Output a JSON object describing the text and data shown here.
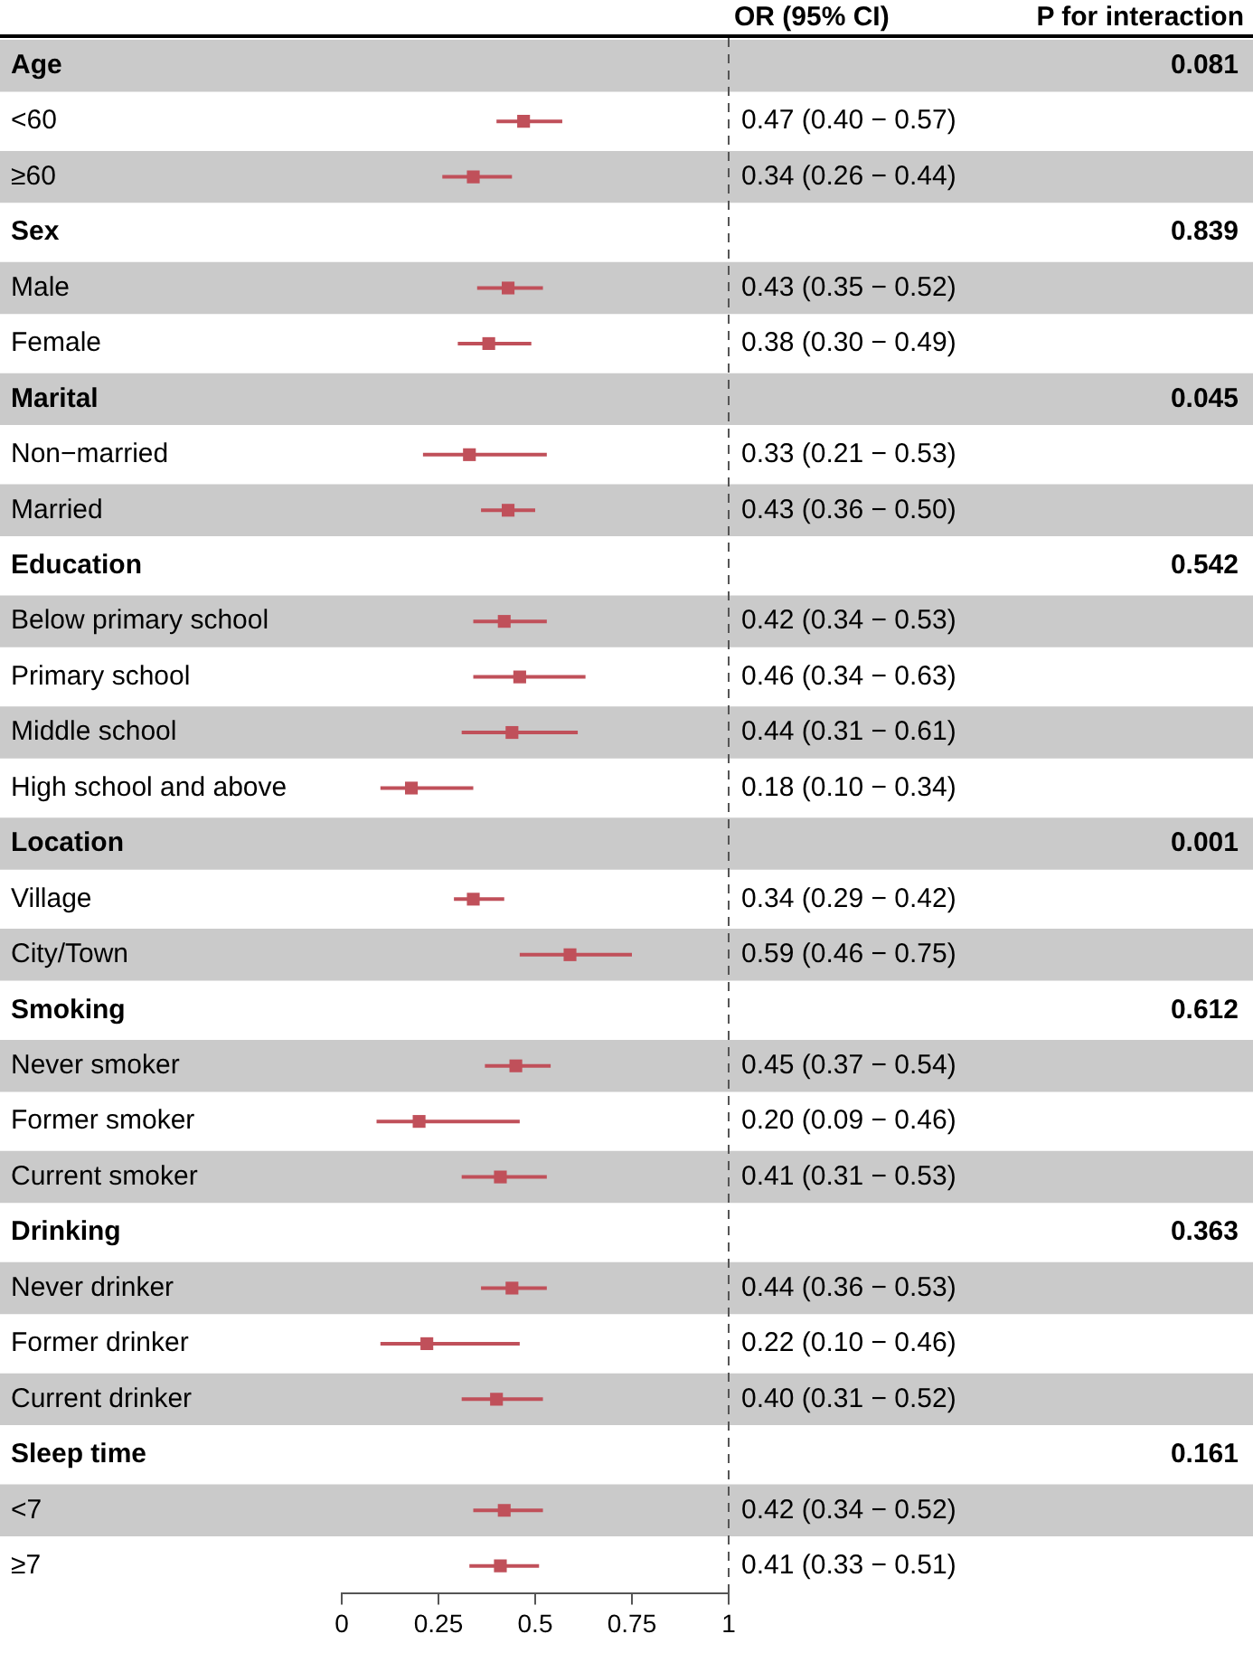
{
  "chart_data": {
    "type": "scatter",
    "orientation": "horizontal",
    "categories": [
      "Age",
      "<60",
      "≥60",
      "Sex",
      "Male",
      "Female",
      "Marital",
      "Non−married",
      "Married",
      "Education",
      "Below primary school",
      "Primary school",
      "Middle school",
      "High school and above",
      "Location",
      "Village",
      "City/Town",
      "Smoking",
      "Never smoker",
      "Former smoker",
      "Current smoker",
      "Drinking",
      "Never drinker",
      "Former drinker",
      "Current drinker",
      "Sleep time",
      "<7",
      "≥7"
    ],
    "series": [
      {
        "color": "#c0505a",
        "values": [
          null,
          0.47,
          0.34,
          null,
          0.43,
          0.38,
          null,
          0.33,
          0.43,
          null,
          0.42,
          0.46,
          0.44,
          0.18,
          null,
          0.34,
          0.59,
          null,
          0.45,
          0.2,
          0.41,
          null,
          0.44,
          0.22,
          0.4,
          null,
          0.42,
          0.41
        ],
        "errors": [
          null,
          [
            0.4,
            0.57
          ],
          [
            0.26,
            0.44
          ],
          null,
          [
            0.35,
            0.52
          ],
          [
            0.3,
            0.49
          ],
          null,
          [
            0.21,
            0.53
          ],
          [
            0.36,
            0.5
          ],
          null,
          [
            0.34,
            0.53
          ],
          [
            0.34,
            0.63
          ],
          [
            0.31,
            0.61
          ],
          [
            0.1,
            0.34
          ],
          null,
          [
            0.29,
            0.42
          ],
          [
            0.46,
            0.75
          ],
          null,
          [
            0.37,
            0.54
          ],
          [
            0.09,
            0.46
          ],
          [
            0.31,
            0.53
          ],
          null,
          [
            0.36,
            0.53
          ],
          [
            0.1,
            0.46
          ],
          [
            0.31,
            0.52
          ],
          null,
          [
            0.34,
            0.52
          ],
          [
            0.33,
            0.51
          ]
        ],
        "value_labels": [
          null,
          "0.47 (0.40 − 0.57)",
          "0.34 (0.26 − 0.44)",
          null,
          "0.43 (0.35 − 0.52)",
          "0.38 (0.30 − 0.49)",
          null,
          "0.33 (0.21 − 0.53)",
          "0.43 (0.36 − 0.50)",
          null,
          "0.42 (0.34 − 0.53)",
          "0.46 (0.34 − 0.63)",
          "0.44 (0.31 − 0.61)",
          "0.18 (0.10 − 0.34)",
          null,
          "0.34 (0.29 − 0.42)",
          "0.59 (0.46 − 0.75)",
          null,
          "0.45 (0.37 − 0.54)",
          "0.20 (0.09 − 0.46)",
          "0.41 (0.31 − 0.53)",
          null,
          "0.44 (0.36 − 0.53)",
          "0.22 (0.10 − 0.46)",
          "0.40 (0.31 − 0.52)",
          null,
          "0.42 (0.34 − 0.52)",
          "0.41 (0.33 − 0.51)"
        ]
      }
    ],
    "xlim": [
      0,
      1
    ],
    "xticks": [
      0,
      0.25,
      0.5,
      0.75,
      1
    ],
    "marker": "square",
    "grid": false,
    "legend": false,
    "ref_lines": [
      {
        "axis": "x",
        "value": 1,
        "color": "#555555",
        "line_style": "dashed"
      }
    ],
    "annotations": [
      "OR (95% CI)",
      "P for interaction",
      "0.081",
      "0.839",
      "0.045",
      "0.542",
      "0.001",
      "0.612",
      "0.363",
      "0.161"
    ]
  }
}
